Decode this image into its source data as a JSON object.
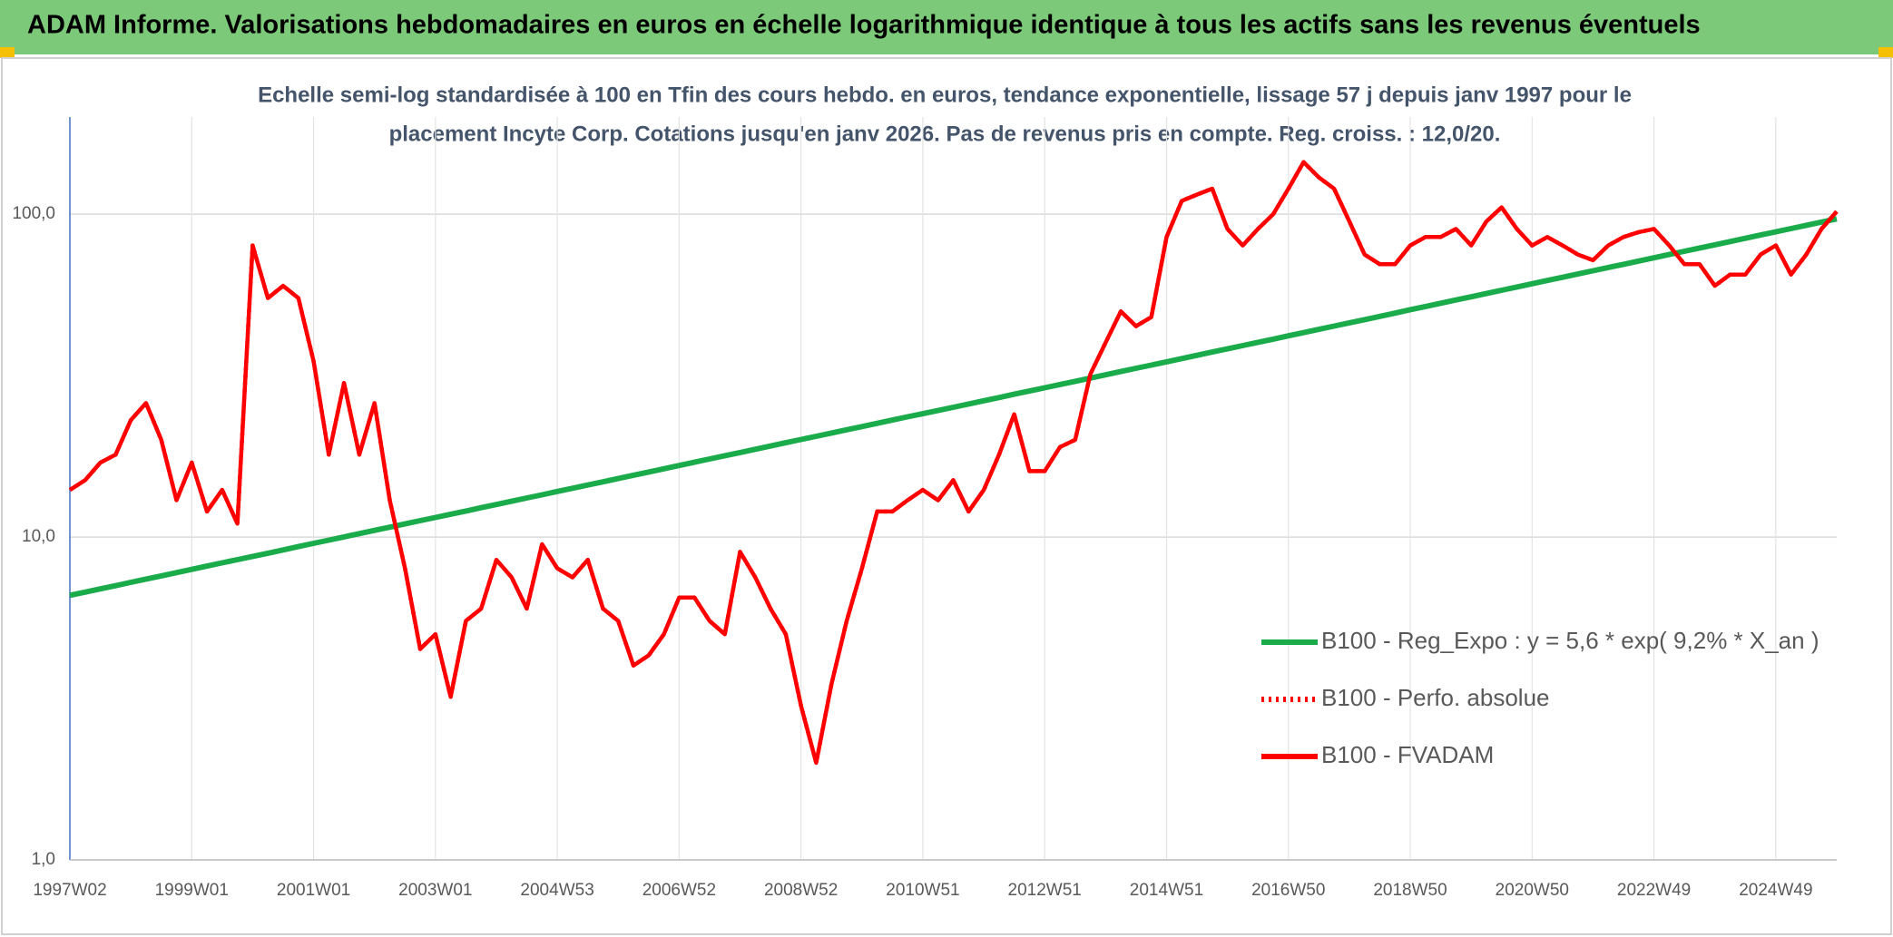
{
  "chart_data": {
    "type": "line",
    "header": "ADAM Informe. Valorisations hebdomadaires en euros en échelle logarithmique identique à tous les actifs sans les revenus éventuels",
    "subtitle": [
      "Echelle semi-log standardisée à 100 en Tfin des cours hebdo. en euros, tendance exponentielle, lissage 57 j depuis janv 1997 pour le",
      "placement Incyte Corp. Cotations jusqu'en janv 2026. Pas de revenus pris en compte. Reg. croiss. : 12,0/20."
    ],
    "log_y": true,
    "grid": true,
    "legend": "right",
    "ylim": [
      1,
      200
    ],
    "yticks": [
      {
        "value": 1,
        "label": "1,0"
      },
      {
        "value": 10,
        "label": "10,0"
      },
      {
        "value": 100,
        "label": "100,0"
      }
    ],
    "categories": [
      "1997W02",
      null,
      null,
      null,
      null,
      null,
      null,
      null,
      "1999W01",
      null,
      null,
      null,
      null,
      null,
      null,
      null,
      "2001W01",
      null,
      null,
      null,
      null,
      null,
      null,
      null,
      "2003W01",
      null,
      null,
      null,
      null,
      null,
      null,
      null,
      "2004W53",
      null,
      null,
      null,
      null,
      null,
      null,
      null,
      "2006W52",
      null,
      null,
      null,
      null,
      null,
      null,
      null,
      "2008W52",
      null,
      null,
      null,
      null,
      null,
      null,
      null,
      "2010W51",
      null,
      null,
      null,
      null,
      null,
      null,
      null,
      "2012W51",
      null,
      null,
      null,
      null,
      null,
      null,
      null,
      "2014W51",
      null,
      null,
      null,
      null,
      null,
      null,
      null,
      "2016W50",
      null,
      null,
      null,
      null,
      null,
      null,
      null,
      "2018W50",
      null,
      null,
      null,
      null,
      null,
      null,
      null,
      "2020W50",
      null,
      null,
      null,
      null,
      null,
      null,
      null,
      "2022W49",
      null,
      null,
      null,
      null,
      null,
      null,
      null,
      "2024W49",
      null,
      null,
      null,
      null
    ],
    "series": [
      {
        "name": "B100 - Reg_Expo : y = 5,6 * exp( 9,2% *  X_an )",
        "color": "#1aab4b",
        "style": "solid",
        "values": [
          6.6,
          6.75,
          6.91,
          7.07,
          7.24,
          7.41,
          7.58,
          7.76,
          7.94,
          8.13,
          8.32,
          8.51,
          8.71,
          8.91,
          9.12,
          9.34,
          9.56,
          9.78,
          10.01,
          10.25,
          10.49,
          10.73,
          10.98,
          11.24,
          11.5,
          11.77,
          12.04,
          12.33,
          12.61,
          12.91,
          13.21,
          13.52,
          13.84,
          14.16,
          14.49,
          14.83,
          15.18,
          15.54,
          15.9,
          16.27,
          16.66,
          17.05,
          17.45,
          17.86,
          18.27,
          18.7,
          19.14,
          19.59,
          20.05,
          20.52,
          21.0,
          21.49,
          21.99,
          22.51,
          23.03,
          23.57,
          24.1,
          24.66,
          25.24,
          25.83,
          26.44,
          27.05,
          27.69,
          28.33,
          29.0,
          29.68,
          30.37,
          31.08,
          31.81,
          32.56,
          33.32,
          34.1,
          34.9,
          35.72,
          36.55,
          37.41,
          38.28,
          39.18,
          40.09,
          41.03,
          42.0,
          42.98,
          43.99,
          45.02,
          46.07,
          47.15,
          48.25,
          49.38,
          50.6,
          51.78,
          52.99,
          54.23,
          55.5,
          56.8,
          58.13,
          59.49,
          60.9,
          62.33,
          63.78,
          65.27,
          66.8,
          68.37,
          69.96,
          71.6,
          73.3,
          75.01,
          76.77,
          78.56,
          80.4,
          82.29,
          84.21,
          86.18,
          88.2,
          90.26,
          92.37,
          94.53,
          96.75
        ]
      },
      {
        "name": "B100 - Perfo. absolue",
        "color": "#ff0000",
        "style": "dotted",
        "values": [
          14,
          15,
          17,
          18,
          23,
          26,
          20,
          13,
          17,
          12,
          14,
          11,
          80,
          55,
          60,
          55,
          35,
          18,
          30,
          18,
          26,
          13,
          8,
          4.5,
          5,
          3.2,
          5.5,
          6,
          8.5,
          7.5,
          6,
          9.5,
          8,
          7.5,
          8.5,
          6,
          5.5,
          4,
          4.3,
          5,
          6.5,
          6.5,
          5.5,
          5,
          9,
          7.5,
          6,
          5,
          3,
          2,
          3.5,
          5.5,
          8,
          12,
          12,
          13,
          14,
          13,
          15,
          12,
          14,
          18,
          24,
          16,
          16,
          19,
          20,
          32,
          40,
          50,
          45,
          48,
          85,
          110,
          115,
          120,
          90,
          80,
          90,
          100,
          120,
          145,
          130,
          120,
          95,
          75,
          70,
          70,
          80,
          85,
          85,
          90,
          80,
          95,
          105,
          90,
          80,
          85,
          80,
          75,
          72,
          80,
          85,
          88,
          90,
          80,
          70,
          70,
          60,
          65,
          65,
          75,
          80,
          65,
          75,
          90,
          102
        ]
      },
      {
        "name": "B100 - FVADAM",
        "color": "#ff0000",
        "style": "solid",
        "values": [
          14,
          15,
          17,
          18,
          23,
          26,
          20,
          13,
          17,
          12,
          14,
          11,
          80,
          55,
          60,
          55,
          35,
          18,
          30,
          18,
          26,
          13,
          8,
          4.5,
          5,
          3.2,
          5.5,
          6,
          8.5,
          7.5,
          6,
          9.5,
          8,
          7.5,
          8.5,
          6,
          5.5,
          4,
          4.3,
          5,
          6.5,
          6.5,
          5.5,
          5,
          9,
          7.5,
          6,
          5,
          3,
          2,
          3.5,
          5.5,
          8,
          12,
          12,
          13,
          14,
          13,
          15,
          12,
          14,
          18,
          24,
          16,
          16,
          19,
          20,
          32,
          40,
          50,
          45,
          48,
          85,
          110,
          115,
          120,
          90,
          80,
          90,
          100,
          120,
          145,
          130,
          120,
          95,
          75,
          70,
          70,
          80,
          85,
          85,
          90,
          80,
          95,
          105,
          90,
          80,
          85,
          80,
          75,
          72,
          80,
          85,
          88,
          90,
          80,
          70,
          70,
          60,
          65,
          65,
          75,
          80,
          65,
          75,
          90,
          102
        ]
      }
    ]
  }
}
